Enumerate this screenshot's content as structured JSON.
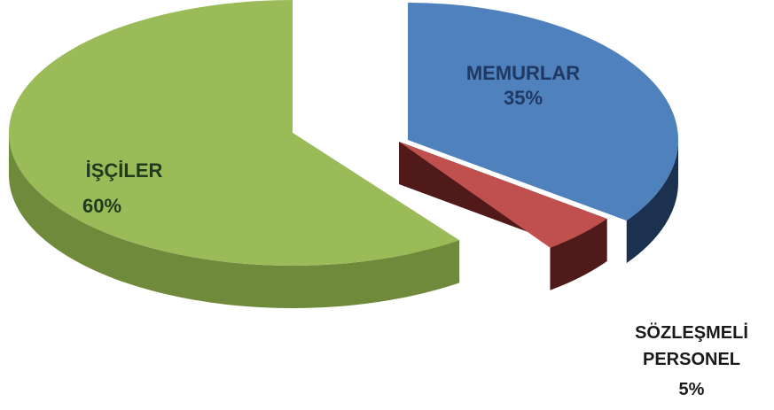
{
  "chart_data": {
    "type": "pie",
    "title": "",
    "slices": [
      {
        "label_lines": [
          "MEMURLAR"
        ],
        "pct_label": "35%",
        "value": 35,
        "color": "#4f81bd",
        "side_color": "#1c304f",
        "label_color": "#1f3864"
      },
      {
        "label_lines": [
          "SÖZLEŞMELİ",
          "PERSONEL"
        ],
        "pct_label": "5%",
        "value": 5,
        "color": "#c0504d",
        "side_color": "#4f1a19",
        "label_color": "#1a1a1a"
      },
      {
        "label_lines": [
          "İŞÇİLER"
        ],
        "pct_label": "60%",
        "value": 60,
        "color": "#9bbb59",
        "side_color": "#6f8a3a",
        "label_color": "#1f3b1f"
      }
    ],
    "legend": "none",
    "exploded": true,
    "style": "3d"
  }
}
